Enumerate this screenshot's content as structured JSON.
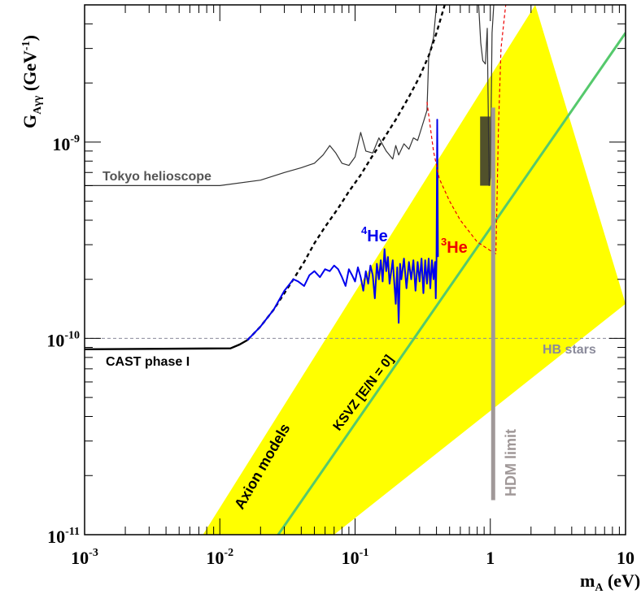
{
  "chart_data": {
    "type": "line",
    "xscale": "log",
    "yscale": "log",
    "xlim": [
      0.001,
      10
    ],
    "ylim": [
      1e-11,
      5e-09
    ],
    "x_ticks": [
      {
        "value": 0.001,
        "base": "10",
        "exp": "-3"
      },
      {
        "value": 0.01,
        "base": "10",
        "exp": "-2"
      },
      {
        "value": 0.1,
        "base": "10",
        "exp": "-1"
      },
      {
        "value": 1,
        "base": "1",
        "exp": ""
      },
      {
        "value": 10,
        "base": "10",
        "exp": ""
      }
    ],
    "y_ticks": [
      {
        "value": 1e-11,
        "base": "10",
        "exp": "-11"
      },
      {
        "value": 1e-10,
        "base": "10",
        "exp": "-10"
      },
      {
        "value": 1e-09,
        "base": "10",
        "exp": "-9"
      }
    ],
    "xlabel": {
      "main": "m",
      "sub": "A",
      "unit": " (eV)"
    },
    "ylabel": {
      "main": "G",
      "sub": "Aγγ",
      "unit": " (GeV",
      "unit_exp": "-1",
      "unit_close": ")"
    },
    "colors": {
      "band": "#ffff00",
      "ksvz": "#55c96c",
      "cast_he4": "#0000ee",
      "he3": "#ee0000",
      "hdm": "#a09898",
      "hb": "#8a8a9a",
      "tokyo": "#333333",
      "cast_phase1": "#000000",
      "tokyo_label": "#555555",
      "hb_label": "#8a8a9a"
    },
    "band": {
      "name": "Axion models",
      "upper": [
        [
          0.0075,
          1e-11
        ],
        [
          2.15,
          5e-09
        ]
      ],
      "lower": [
        [
          0.07,
          1e-11
        ],
        [
          10,
          1.5e-10
        ]
      ]
    },
    "series": [
      {
        "name": "KSVZ [E/N = 0]",
        "points": [
          [
            0.027,
            1e-11
          ],
          [
            10,
            3.6e-09
          ]
        ]
      },
      {
        "name": "Tokyo helioscope",
        "points": [
          [
            0.001,
            6e-10
          ],
          [
            0.01,
            6e-10
          ],
          [
            0.02,
            6.4e-10
          ],
          [
            0.03,
            7e-10
          ],
          [
            0.04,
            7.4e-10
          ],
          [
            0.05,
            7.8e-10
          ],
          [
            0.058,
            8.6e-10
          ],
          [
            0.065,
            9.6e-10
          ],
          [
            0.072,
            8.8e-10
          ],
          [
            0.08,
            7.8e-10
          ],
          [
            0.09,
            7.6e-10
          ],
          [
            0.1,
            8.4e-10
          ],
          [
            0.11,
            1.12e-09
          ],
          [
            0.12,
            9e-10
          ],
          [
            0.135,
            8.8e-10
          ],
          [
            0.15,
            1.05e-09
          ],
          [
            0.17,
            9e-10
          ],
          [
            0.19,
            8.2e-10
          ],
          [
            0.2,
            9.6e-10
          ],
          [
            0.21,
            8.6e-10
          ],
          [
            0.23,
            9.8e-10
          ],
          [
            0.25,
            9.2e-10
          ],
          [
            0.27,
            1.05e-09
          ],
          [
            0.29,
            1.02e-09
          ],
          [
            0.31,
            1.18e-09
          ],
          [
            0.34,
            1.45e-09
          ],
          [
            0.35,
            2.7e-09
          ],
          [
            0.38,
            3.4e-09
          ],
          [
            0.4,
            5e-09
          ]
        ]
      },
      {
        "name": "Tokyo helioscope (high mass)",
        "points": [
          [
            0.82,
            5e-09
          ],
          [
            0.85,
            3.2e-09
          ],
          [
            0.88,
            2.6e-09
          ],
          [
            0.92,
            2.5e-09
          ],
          [
            0.95,
            3.8e-09
          ],
          [
            0.98,
            6e-10
          ],
          [
            1.0,
            6.6e-10
          ],
          [
            1.03,
            3.6e-09
          ],
          [
            1.06,
            5e-09
          ]
        ]
      },
      {
        "name": "CAST phase I",
        "points": [
          [
            0.001,
            8.8e-11
          ],
          [
            0.012,
            8.9e-11
          ],
          [
            0.014,
            9.3e-11
          ],
          [
            0.016,
            9.8e-11
          ]
        ]
      },
      {
        "name": "CAST phase I (expected)",
        "points": [
          [
            0.016,
            9.8e-11
          ],
          [
            0.02,
            1.15e-10
          ],
          [
            0.025,
            1.4e-10
          ],
          [
            0.03,
            1.7e-10
          ],
          [
            0.035,
            2e-10
          ],
          [
            0.042,
            2.45e-10
          ],
          [
            0.05,
            3.05e-10
          ],
          [
            0.06,
            3.7e-10
          ],
          [
            0.075,
            4.6e-10
          ],
          [
            0.09,
            5.6e-10
          ],
          [
            0.11,
            6.8e-10
          ],
          [
            0.13,
            8.2e-10
          ],
          [
            0.16,
            1.02e-09
          ],
          [
            0.2,
            1.3e-09
          ],
          [
            0.25,
            1.7e-09
          ],
          [
            0.3,
            2.15e-09
          ],
          [
            0.35,
            2.75e-09
          ],
          [
            0.4,
            3.6e-09
          ],
          [
            0.46,
            5e-09
          ]
        ]
      },
      {
        "name": "4He",
        "points": [
          [
            0.016,
            9.8e-11
          ],
          [
            0.02,
            1.15e-10
          ],
          [
            0.025,
            1.4e-10
          ],
          [
            0.03,
            1.75e-10
          ],
          [
            0.035,
            2e-10
          ],
          [
            0.038,
            1.95e-10
          ],
          [
            0.042,
            1.85e-10
          ],
          [
            0.046,
            2.1e-10
          ],
          [
            0.05,
            2.2e-10
          ],
          [
            0.055,
            2.05e-10
          ],
          [
            0.06,
            2.25e-10
          ],
          [
            0.065,
            2.2e-10
          ],
          [
            0.07,
            2.35e-10
          ],
          [
            0.075,
            2.25e-10
          ],
          [
            0.08,
            2.05e-10
          ],
          [
            0.085,
            1.85e-10
          ],
          [
            0.09,
            2.25e-10
          ],
          [
            0.095,
            2.1e-10
          ],
          [
            0.1,
            1.95e-10
          ],
          [
            0.105,
            2.3e-10
          ],
          [
            0.11,
            2.05e-10
          ],
          [
            0.115,
            1.75e-10
          ],
          [
            0.12,
            2.2e-10
          ],
          [
            0.125,
            1.9e-10
          ],
          [
            0.13,
            2.35e-10
          ],
          [
            0.135,
            2.1e-10
          ],
          [
            0.14,
            1.6e-10
          ],
          [
            0.145,
            2.4e-10
          ],
          [
            0.15,
            2e-10
          ],
          [
            0.155,
            2.5e-10
          ],
          [
            0.16,
            1.95e-10
          ],
          [
            0.165,
            2.85e-10
          ],
          [
            0.17,
            2.2e-10
          ],
          [
            0.175,
            2.6e-10
          ],
          [
            0.18,
            1.9e-10
          ],
          [
            0.19,
            2.5e-10
          ],
          [
            0.2,
            1.5e-10
          ],
          [
            0.205,
            2.3e-10
          ],
          [
            0.21,
            1.2e-10
          ],
          [
            0.215,
            2.4e-10
          ],
          [
            0.22,
            2e-10
          ],
          [
            0.23,
            2.55e-10
          ],
          [
            0.24,
            1.8e-10
          ],
          [
            0.25,
            2.45e-10
          ],
          [
            0.26,
            2e-10
          ],
          [
            0.27,
            2.5e-10
          ],
          [
            0.28,
            1.75e-10
          ],
          [
            0.29,
            2.45e-10
          ],
          [
            0.3,
            1.95e-10
          ],
          [
            0.31,
            2.55e-10
          ],
          [
            0.32,
            1.7e-10
          ],
          [
            0.33,
            2.5e-10
          ],
          [
            0.34,
            1.9e-10
          ],
          [
            0.35,
            2.55e-10
          ],
          [
            0.36,
            1.8e-10
          ],
          [
            0.37,
            2.5e-10
          ],
          [
            0.38,
            2e-10
          ],
          [
            0.39,
            2.45e-10
          ],
          [
            0.395,
            1.6e-10
          ],
          [
            0.4,
            2.5e-10
          ],
          [
            0.405,
            1.3e-09
          ],
          [
            0.41,
            2.6e-10
          ]
        ]
      },
      {
        "name": "3He",
        "points": [
          [
            0.34,
            1.6e-09
          ],
          [
            0.38,
            9e-10
          ],
          [
            0.42,
            6.5e-10
          ],
          [
            0.5,
            5e-10
          ],
          [
            0.6,
            4e-10
          ],
          [
            0.8,
            3.1e-10
          ],
          [
            1.0,
            2.8e-10
          ],
          [
            1.1,
            2.7e-10
          ],
          [
            1.15,
            1.2e-09
          ],
          [
            1.2,
            3e-09
          ],
          [
            1.3,
            5e-09
          ]
        ]
      }
    ],
    "hb_stars": {
      "name": "HB stars",
      "y": 1e-10
    },
    "hdm_limit": {
      "name": "HDM limit",
      "x": 1.05,
      "y_range": [
        1.5e-11,
        1.5e-09
      ]
    },
    "labels": {
      "tokyo": "Tokyo helioscope",
      "cast": "CAST phase I",
      "he4_sup": "4",
      "he4_main": "He",
      "he3_sup": "3",
      "he3_main": "He",
      "hb": "HB stars",
      "axion": "Axion models",
      "ksvz": "KSVZ [E/N = 0]",
      "hdm": "HDM limit"
    }
  }
}
